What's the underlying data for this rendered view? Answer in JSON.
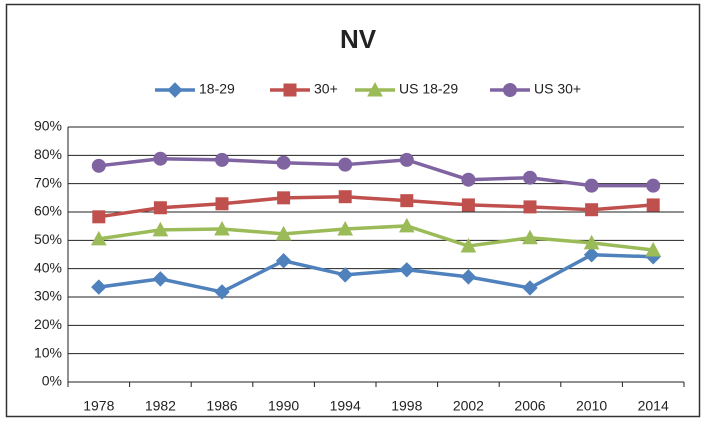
{
  "chart_data": {
    "type": "line",
    "title": "NV",
    "categories": [
      "1978",
      "1982",
      "1986",
      "1990",
      "1994",
      "1998",
      "2002",
      "2006",
      "2010",
      "2014"
    ],
    "series": [
      {
        "name": "18-29",
        "color": "#4f81bd",
        "marker": "diamond",
        "values": [
          33.5,
          36.4,
          31.8,
          42.8,
          37.8,
          39.6,
          37.1,
          33.2,
          44.9,
          44.2
        ]
      },
      {
        "name": "30+",
        "color": "#c0504d",
        "marker": "square",
        "values": [
          58.3,
          61.5,
          62.9,
          65.0,
          65.4,
          64.0,
          62.5,
          61.8,
          60.8,
          62.5
        ]
      },
      {
        "name": "US 18-29",
        "color": "#9bbb59",
        "marker": "triangle",
        "values": [
          50.5,
          53.7,
          54.0,
          52.3,
          54.0,
          55.1,
          48.0,
          50.9,
          49.1,
          46.6
        ]
      },
      {
        "name": "US 30+",
        "color": "#8064a2",
        "marker": "circle",
        "values": [
          76.3,
          78.8,
          78.4,
          77.4,
          76.7,
          78.4,
          71.4,
          72.1,
          69.3,
          69.3
        ]
      }
    ],
    "ylim": [
      0,
      90
    ],
    "yticks": [
      {
        "value": 0,
        "label": "0%"
      },
      {
        "value": 10,
        "label": "10%"
      },
      {
        "value": 20,
        "label": "20%"
      },
      {
        "value": 30,
        "label": "30%"
      },
      {
        "value": 40,
        "label": "40%"
      },
      {
        "value": 50,
        "label": "50%"
      },
      {
        "value": 60,
        "label": "60%"
      },
      {
        "value": 70,
        "label": "70%"
      },
      {
        "value": 80,
        "label": "80%"
      },
      {
        "value": 90,
        "label": "90%"
      }
    ],
    "grid": true,
    "legend": "top"
  }
}
